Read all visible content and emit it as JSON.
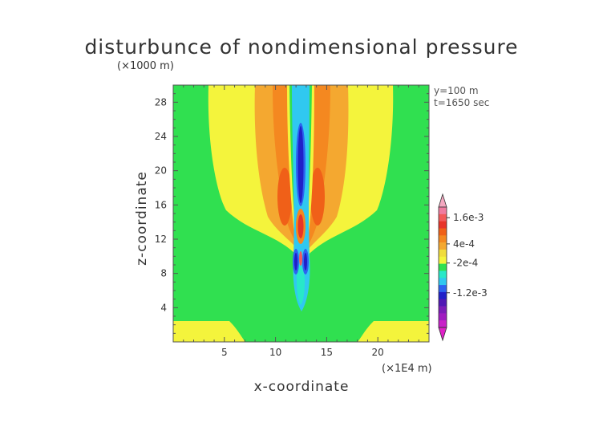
{
  "chart_data": {
    "type": "heatmap",
    "title": "disturbunce of nondimensional pressure",
    "xlabel": "x-coordinate",
    "ylabel": "z-coordinate",
    "x_unit": "(×1E4 m)",
    "z_unit": "(×1000 m)",
    "xlim": [
      0,
      25
    ],
    "ylim": [
      0,
      30
    ],
    "x_ticks": [
      "5",
      "10",
      "15",
      "20"
    ],
    "y_ticks": [
      "4",
      "8",
      "12",
      "16",
      "20",
      "24",
      "28"
    ],
    "annotations": [
      "y=100 m",
      "t=1650 sec"
    ],
    "colorbar": {
      "labels": [
        "1.6e-3",
        "4e-4",
        "-2e-4",
        "-1.2e-3"
      ],
      "colors": [
        "#f07ca0",
        "#f25a5a",
        "#e8342a",
        "#f06018",
        "#f48820",
        "#f4a830",
        "#f0dc3c",
        "#f4f43c",
        "#30e050",
        "#28e8c8",
        "#30c8f0",
        "#2c64f0",
        "#2020c8",
        "#5018b4",
        "#7c1cb8",
        "#a01cc0",
        "#c820c8"
      ]
    }
  }
}
